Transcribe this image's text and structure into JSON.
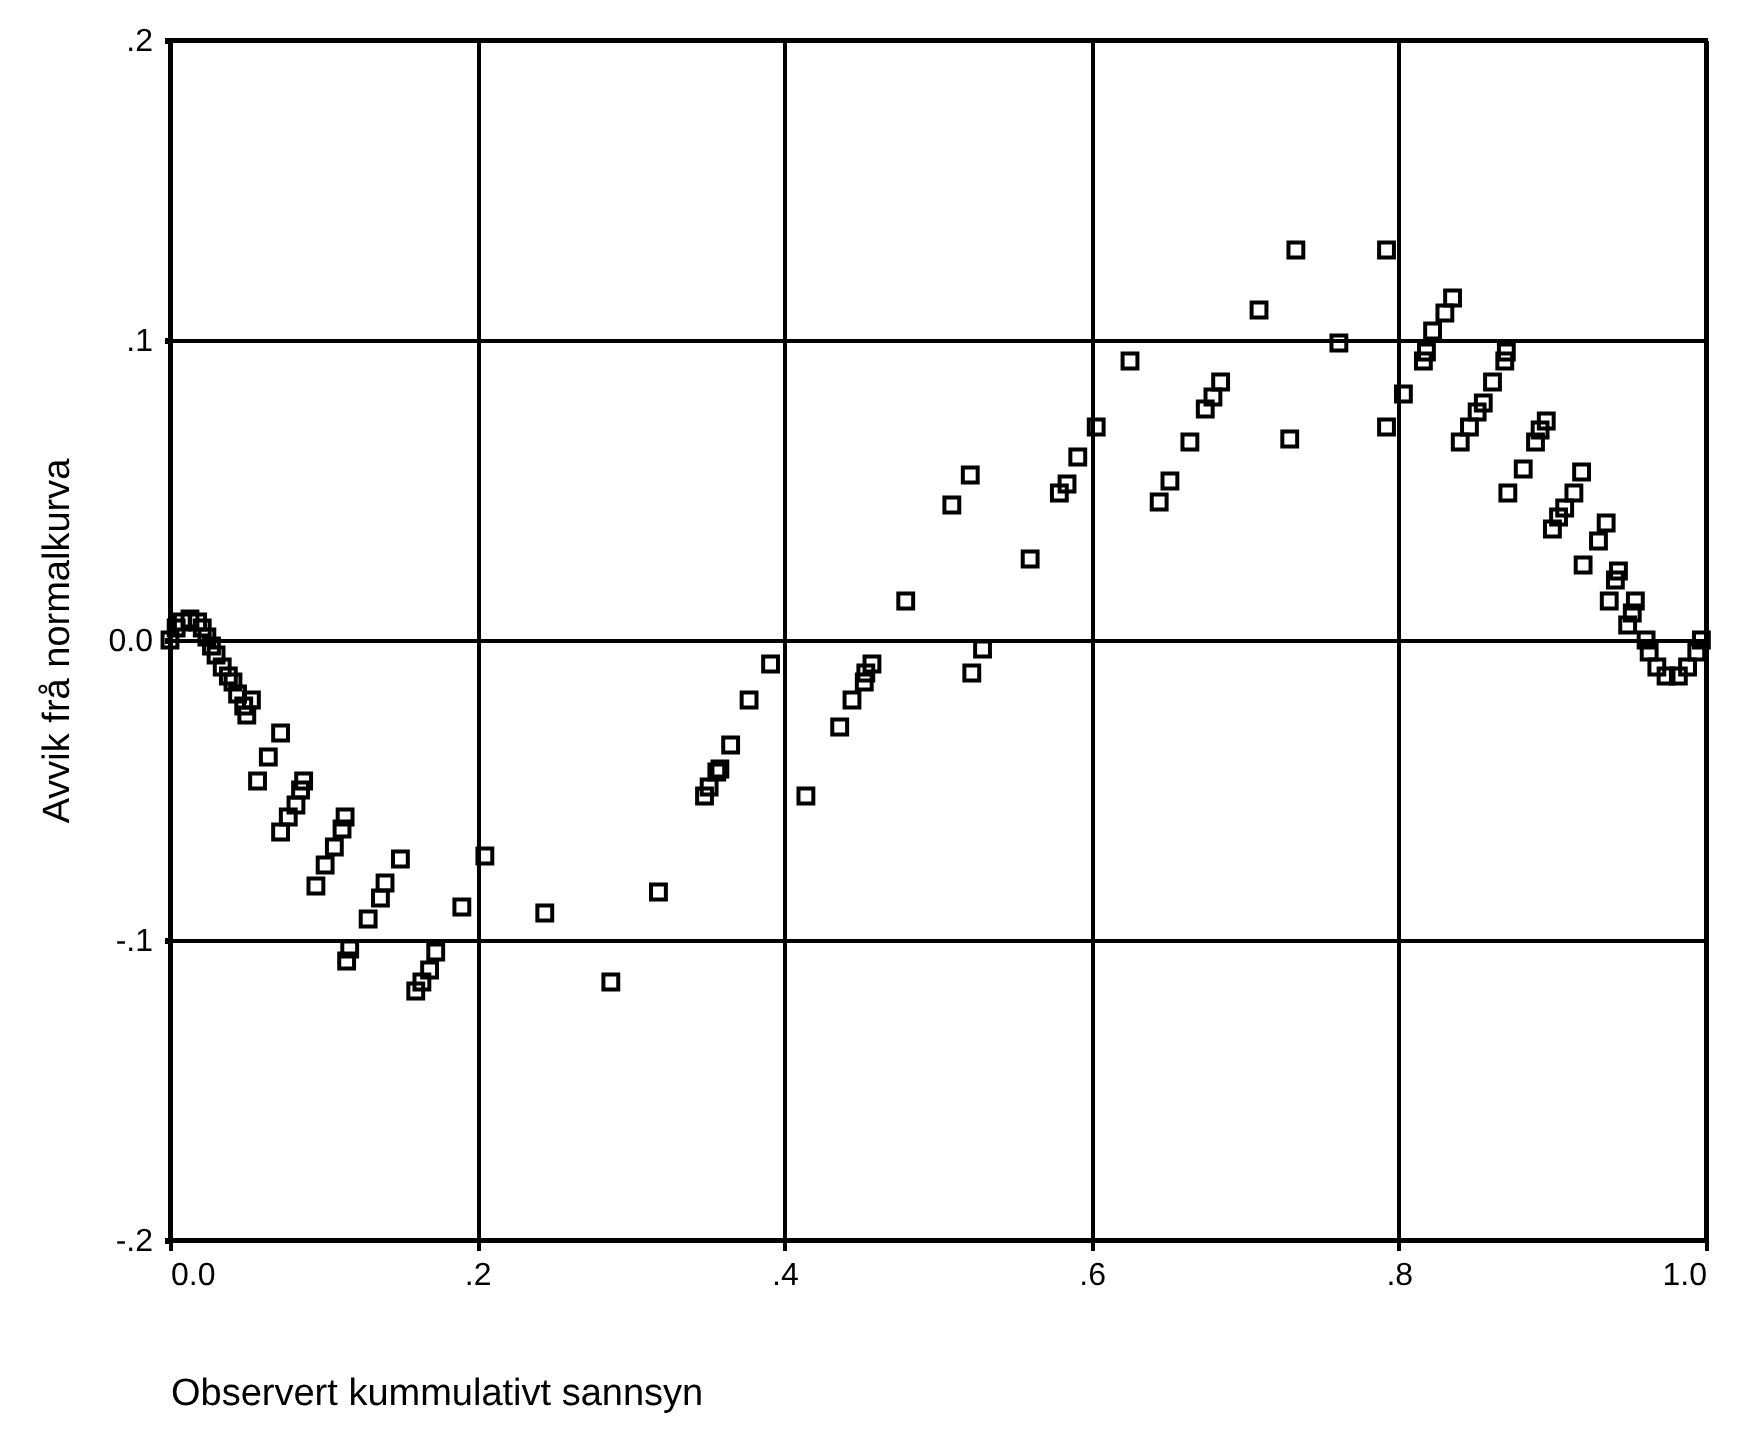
{
  "chart_data": {
    "type": "scatter",
    "xlabel": "Observert kummulativt sannsyn",
    "ylabel": "Avvik frå normalkurva",
    "x": [
      0,
      0.004,
      0.008,
      0.013,
      0.018,
      0.021,
      0.024,
      0.027,
      0.03,
      0.034,
      0.038,
      0.041,
      0.044,
      0.048,
      0.05,
      0.053,
      0.057,
      0.064,
      0.072,
      0.072,
      0.077,
      0.082,
      0.085,
      0.087,
      0.095,
      0.101,
      0.107,
      0.112,
      0.114,
      0.115,
      0.117,
      0.129,
      0.137,
      0.14,
      0.15,
      0.16,
      0.164,
      0.169,
      0.173,
      0.19,
      0.205,
      0.244,
      0.287,
      0.318,
      0.348,
      0.351,
      0.356,
      0.358,
      0.365,
      0.377,
      0.391,
      0.414,
      0.436,
      0.444,
      0.452,
      0.453,
      0.457,
      0.479,
      0.509,
      0.521,
      0.522,
      0.529,
      0.56,
      0.579,
      0.584,
      0.591,
      0.603,
      0.625,
      0.644,
      0.651,
      0.664,
      0.674,
      0.679,
      0.684,
      0.709,
      0.729,
      0.733,
      0.761,
      0.792,
      0.792,
      0.803,
      0.816,
      0.818,
      0.822,
      0.83,
      0.835,
      0.84,
      0.846,
      0.851,
      0.855,
      0.861,
      0.869,
      0.87,
      0.871,
      0.881,
      0.889,
      0.892,
      0.896,
      0.9,
      0.904,
      0.908,
      0.914,
      0.919,
      0.92,
      0.93,
      0.935,
      0.937,
      0.941,
      0.943,
      0.949,
      0.952,
      0.954,
      0.961,
      0.963,
      0.968,
      0.974,
      0.982,
      0.988,
      0.994,
      0.997
    ],
    "values": [
      0,
      0.004,
      0.006,
      0.007,
      0.006,
      0.004,
      0.001,
      -0.002,
      -0.005,
      -0.009,
      -0.012,
      -0.014,
      -0.018,
      -0.022,
      -0.025,
      -0.02,
      -0.047,
      -0.039,
      -0.031,
      -0.064,
      -0.059,
      -0.055,
      -0.05,
      -0.047,
      -0.082,
      -0.075,
      -0.069,
      -0.063,
      -0.059,
      -0.107,
      -0.103,
      -0.093,
      -0.086,
      -0.081,
      -0.073,
      -0.117,
      -0.114,
      -0.11,
      -0.104,
      -0.089,
      -0.072,
      -0.091,
      -0.114,
      -0.084,
      -0.052,
      -0.049,
      -0.044,
      -0.043,
      -0.035,
      -0.02,
      -0.008,
      -0.052,
      -0.029,
      -0.02,
      -0.014,
      -0.011,
      -0.008,
      0.013,
      0.045,
      0.055,
      -0.011,
      -0.003,
      0.027,
      0.049,
      0.052,
      0.061,
      0.071,
      0.093,
      0.046,
      0.053,
      0.066,
      0.077,
      0.081,
      0.086,
      0.11,
      0.067,
      0.13,
      0.099,
      0.13,
      0.071,
      0.082,
      0.093,
      0.096,
      0.103,
      0.109,
      0.114,
      0.066,
      0.071,
      0.076,
      0.079,
      0.086,
      0.093,
      0.096,
      0.049,
      0.057,
      0.066,
      0.07,
      0.073,
      0.037,
      0.041,
      0.044,
      0.049,
      0.056,
      0.025,
      0.033,
      0.039,
      0.013,
      0.02,
      0.023,
      0.005,
      0.009,
      0.013,
      0,
      -0.004,
      -0.009,
      -0.012,
      -0.012,
      -0.009,
      -0.004,
      0
    ],
    "color": "#000000",
    "marker": "square",
    "grid": true,
    "xlim": [
      0,
      1
    ],
    "xticks": [
      {
        "value": 0,
        "label": "0.0"
      },
      {
        "value": 0.2,
        "label": ".2"
      },
      {
        "value": 0.4,
        "label": ".4"
      },
      {
        "value": 0.6,
        "label": ".6"
      },
      {
        "value": 0.8,
        "label": ".8"
      },
      {
        "value": 1,
        "label": "1.0"
      }
    ],
    "ylim": [
      -0.2,
      0.2
    ],
    "yticks": [
      {
        "value": -0.2,
        "label": "-.2"
      },
      {
        "value": -0.1,
        "label": "-.1"
      },
      {
        "value": 0,
        "label": "0.0"
      },
      {
        "value": 0.1,
        "label": ".1"
      },
      {
        "value": 0.2,
        "label": ".2"
      }
    ]
  }
}
